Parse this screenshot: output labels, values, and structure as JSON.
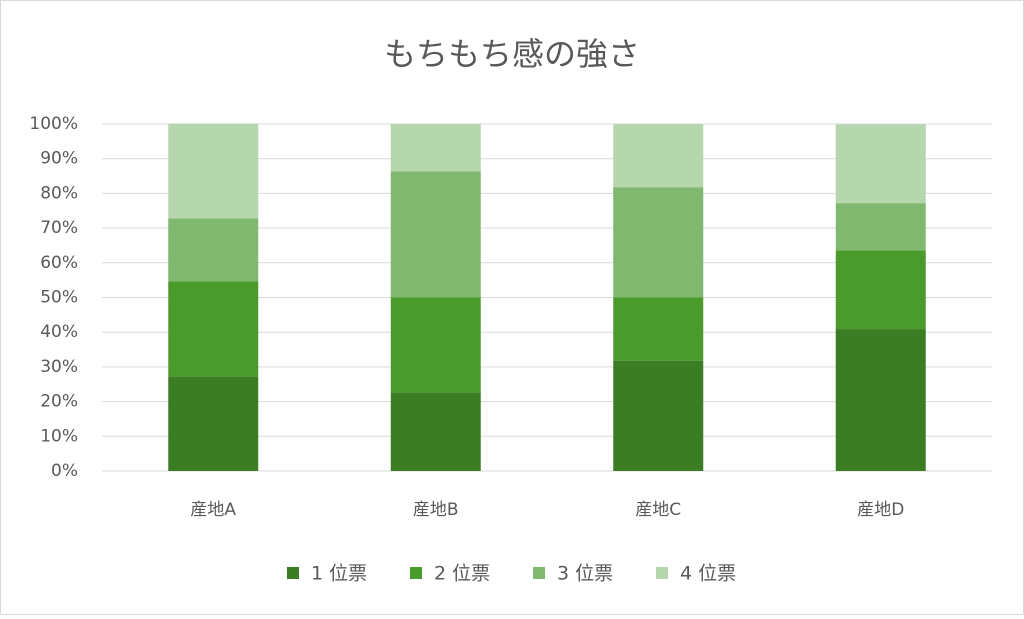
{
  "chart_data": {
    "type": "stacked_bar",
    "title": "もちもち感の強さ",
    "categories": [
      "産地A",
      "産地B",
      "産地C",
      "産地D"
    ],
    "series": [
      {
        "name": "1 位票",
        "color": "#3b7d23",
        "values": [
          27.3,
          22.7,
          31.8,
          40.9
        ]
      },
      {
        "name": "2 位票",
        "color": "#4a9b2b",
        "values": [
          27.3,
          27.3,
          18.2,
          22.7
        ]
      },
      {
        "name": "3 位票",
        "color": "#80b86f",
        "values": [
          18.2,
          36.4,
          31.8,
          13.6
        ]
      },
      {
        "name": "4 位票",
        "color": "#b6d6ad",
        "values": [
          27.3,
          13.6,
          18.2,
          22.7
        ]
      }
    ],
    "ylim": [
      0,
      100
    ],
    "yticks": [
      {
        "value": 0,
        "label": "0%"
      },
      {
        "value": 10,
        "label": "10%"
      },
      {
        "value": 20,
        "label": "20%"
      },
      {
        "value": 30,
        "label": "30%"
      },
      {
        "value": 40,
        "label": "40%"
      },
      {
        "value": 50,
        "label": "50%"
      },
      {
        "value": 60,
        "label": "60%"
      },
      {
        "value": 70,
        "label": "70%"
      },
      {
        "value": 80,
        "label": "80%"
      },
      {
        "value": 90,
        "label": "90%"
      },
      {
        "value": 100,
        "label": "100%"
      }
    ],
    "grid": true,
    "legend": "bottom"
  }
}
